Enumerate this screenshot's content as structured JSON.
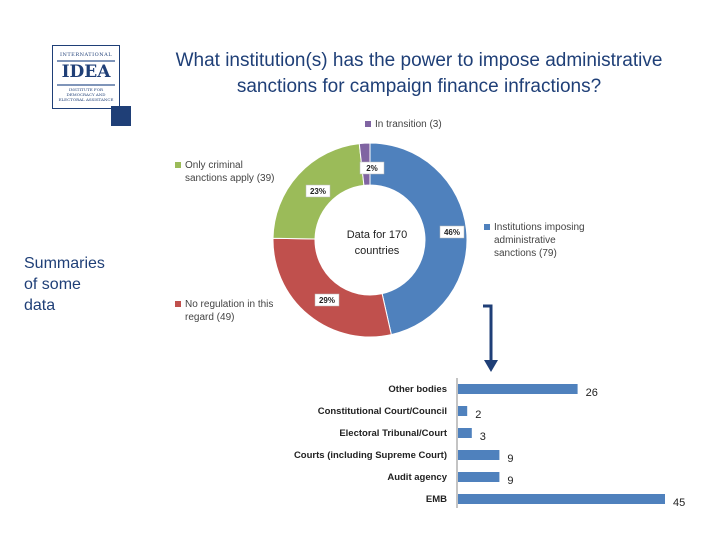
{
  "title": {
    "line1": "What institution(s) has the power to impose administrative",
    "line2": "sanctions for campaign finance infractions?"
  },
  "summary": {
    "line1": "Summaries",
    "line2": "of some",
    "line3": "data"
  },
  "logo": {
    "top": "INTERNATIONAL",
    "mark": "IDEA",
    "bottom": "INSTITUTE FOR DEMOCRACY AND ELECTORAL ASSISTANCE"
  },
  "colors": {
    "title": "#1f3f77",
    "institutions": "#4f81bd",
    "no_regulation": "#c0504d",
    "criminal": "#9bbb59",
    "transition": "#8064a2",
    "bar": "#4f81bd"
  },
  "chart_data": [
    {
      "type": "pie",
      "center_text": {
        "line1": "Data for 170",
        "line2": "countries"
      },
      "slices": [
        {
          "label_line1": "Institutions imposing",
          "label_line2": "administrative",
          "label_line3": "sanctions (79)",
          "value": 79,
          "percent": "46%"
        },
        {
          "label_line1": "No regulation in this",
          "label_line2": "regard (49)",
          "value": 49,
          "percent": "29%"
        },
        {
          "label_line1": "Only criminal",
          "label_line2": "sanctions apply (39)",
          "value": 39,
          "percent": "23%"
        },
        {
          "label_line1": "In transition (3)",
          "value": 3,
          "percent": "2%"
        }
      ]
    },
    {
      "type": "bar",
      "orientation": "horizontal",
      "categories": [
        "Other bodies",
        "Constitutional Court/Council",
        "Electoral Tribunal/Court",
        "Courts (including Supreme Court)",
        "Audit agency",
        "EMB"
      ],
      "values": [
        26,
        2,
        3,
        9,
        9,
        45
      ],
      "value_labels": [
        "26",
        "2",
        "3",
        "9",
        "9",
        "45"
      ],
      "xlim": [
        0,
        45
      ]
    }
  ]
}
